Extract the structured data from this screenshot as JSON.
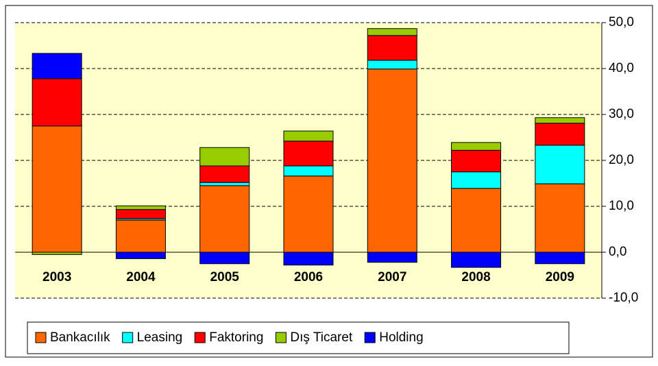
{
  "chart_data": {
    "type": "stacked_bar",
    "categories": [
      "2003",
      "2004",
      "2005",
      "2006",
      "2007",
      "2008",
      "2009"
    ],
    "series": [
      {
        "name": "Bankacılık",
        "color": "#ff6600",
        "values": [
          27.5,
          7.0,
          14.5,
          16.6,
          39.9,
          13.9,
          14.9
        ]
      },
      {
        "name": "Leasing",
        "color": "#00ffff",
        "values": [
          0,
          0.3,
          0.7,
          2.2,
          1.9,
          3.6,
          8.4
        ]
      },
      {
        "name": "Faktoring",
        "color": "#ff0000",
        "values": [
          10.3,
          2.0,
          3.6,
          5.4,
          5.4,
          4.7,
          4.8
        ]
      },
      {
        "name": "Dış Ticaret",
        "color": "#99cc00",
        "values": [
          -0.5,
          0.8,
          4.0,
          2.2,
          1.5,
          1.7,
          1.2
        ]
      },
      {
        "name": "Holding",
        "color": "#0000ff",
        "values": [
          5.5,
          -1.4,
          -2.5,
          -2.8,
          -2.2,
          -3.3,
          -2.5
        ]
      }
    ],
    "ylim": [
      -10,
      50
    ],
    "yticks": [
      {
        "value": -10,
        "label": "-10,0"
      },
      {
        "value": 0,
        "label": "0,0"
      },
      {
        "value": 10,
        "label": "10,0"
      },
      {
        "value": 20,
        "label": "20,0"
      },
      {
        "value": 30,
        "label": "30,0"
      },
      {
        "value": 40,
        "label": "40,0"
      },
      {
        "value": 50,
        "label": "50,0"
      }
    ],
    "grid": true,
    "legend": "bottom"
  }
}
